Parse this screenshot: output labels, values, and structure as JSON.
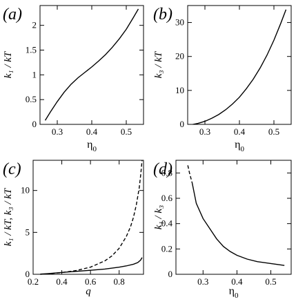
{
  "chart_data": [
    {
      "type": "line",
      "panel_label": "(a)",
      "xlabel": "η",
      "xlabel_sub": "0",
      "ylabel": "k₁ / kT",
      "xlim": [
        0.25,
        0.55
      ],
      "ylim": [
        0,
        2.4
      ],
      "xticks": [
        0.3,
        0.4,
        0.5
      ],
      "xtick_labels": [
        "0.3",
        "0.4",
        "0.5"
      ],
      "yticks": [
        0,
        0.5,
        1,
        1.5,
        2
      ],
      "ytick_labels": [
        "0",
        "0.5",
        "1",
        "1.5",
        "2"
      ],
      "series": [
        {
          "style": "solid",
          "x": [
            0.265,
            0.28,
            0.3,
            0.32,
            0.34,
            0.36,
            0.38,
            0.4,
            0.42,
            0.44,
            0.46,
            0.48,
            0.5,
            0.52,
            0.535
          ],
          "y": [
            0.08,
            0.25,
            0.46,
            0.65,
            0.81,
            0.94,
            1.05,
            1.16,
            1.28,
            1.41,
            1.56,
            1.73,
            1.92,
            2.15,
            2.33
          ]
        }
      ]
    },
    {
      "type": "line",
      "panel_label": "(b)",
      "xlabel": "η",
      "xlabel_sub": "0",
      "ylabel": "k₃ / kT",
      "xlim": [
        0.25,
        0.55
      ],
      "ylim": [
        0,
        35
      ],
      "xticks": [
        0.3,
        0.4,
        0.5
      ],
      "xtick_labels": [
        "0.3",
        "0.4",
        "0.5"
      ],
      "yticks": [
        0,
        10,
        20,
        30
      ],
      "ytick_labels": [
        "0",
        "10",
        "20",
        "30"
      ],
      "series": [
        {
          "style": "solid",
          "x": [
            0.265,
            0.28,
            0.3,
            0.32,
            0.34,
            0.36,
            0.38,
            0.4,
            0.42,
            0.44,
            0.46,
            0.48,
            0.5,
            0.52,
            0.535
          ],
          "y": [
            0.0,
            0.3,
            0.9,
            1.8,
            2.9,
            4.3,
            6.0,
            8.0,
            10.5,
            13.3,
            16.6,
            20.4,
            24.8,
            29.8,
            33.8
          ]
        }
      ]
    },
    {
      "type": "line",
      "panel_label": "(c)",
      "xlabel": "q",
      "ylabel": "k₁ / kT, k₃ / kT",
      "xlim": [
        0.2,
        0.97
      ],
      "ylim": [
        0,
        13.6
      ],
      "xticks": [
        0.2,
        0.4,
        0.6,
        0.8
      ],
      "xtick_labels": [
        "0.2",
        "0.4",
        "0.6",
        "0.8"
      ],
      "yticks": [
        0,
        5,
        10
      ],
      "ytick_labels": [
        "0",
        "5",
        "10"
      ],
      "series": [
        {
          "style": "solid",
          "x": [
            0.25,
            0.3,
            0.4,
            0.5,
            0.6,
            0.7,
            0.8,
            0.85,
            0.9,
            0.93,
            0.95,
            0.96
          ],
          "y": [
            0.02,
            0.08,
            0.22,
            0.35,
            0.48,
            0.62,
            0.85,
            1.0,
            1.2,
            1.4,
            1.7,
            2.0
          ]
        },
        {
          "style": "dashed",
          "x": [
            0.25,
            0.3,
            0.4,
            0.5,
            0.6,
            0.7,
            0.75,
            0.8,
            0.85,
            0.88,
            0.9,
            0.92,
            0.94,
            0.95,
            0.96
          ],
          "y": [
            0.0,
            0.05,
            0.2,
            0.45,
            0.85,
            1.6,
            2.2,
            3.1,
            4.5,
            5.7,
            6.8,
            8.3,
            10.3,
            11.8,
            13.6
          ]
        }
      ]
    },
    {
      "type": "line",
      "panel_label": "(d)",
      "xlabel": "η",
      "xlabel_sub": "0",
      "ylabel": "k₁ / k₃",
      "xlim": [
        0.22,
        0.56
      ],
      "ylim": [
        0,
        0.9
      ],
      "xticks": [
        0.3,
        0.4,
        0.5
      ],
      "xtick_labels": [
        "0.3",
        "0.4",
        "0.5"
      ],
      "yticks": [
        0,
        0.2,
        0.4,
        0.6,
        0.8
      ],
      "ytick_labels": [
        "0",
        "0.2",
        "0.4",
        "0.6",
        "0.8"
      ],
      "series": [
        {
          "style": "dashed",
          "x": [
            0.255,
            0.26,
            0.268
          ],
          "y": [
            0.86,
            0.8,
            0.72
          ]
        },
        {
          "style": "solid",
          "x": [
            0.268,
            0.28,
            0.3,
            0.32,
            0.34,
            0.36,
            0.38,
            0.4,
            0.43,
            0.46,
            0.5,
            0.54
          ],
          "y": [
            0.72,
            0.56,
            0.44,
            0.36,
            0.28,
            0.22,
            0.18,
            0.15,
            0.12,
            0.1,
            0.085,
            0.07
          ]
        }
      ]
    }
  ]
}
